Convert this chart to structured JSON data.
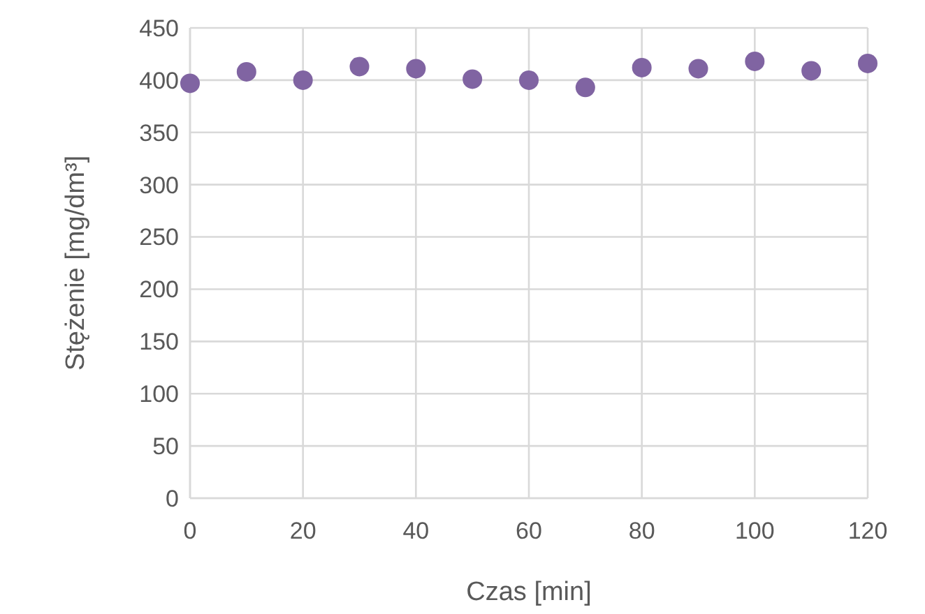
{
  "chart_data": {
    "type": "scatter",
    "xlabel": "Czas [min]",
    "ylabel": "Stężenie [mg/dm³]",
    "x": [
      0,
      10,
      20,
      30,
      40,
      50,
      60,
      70,
      80,
      90,
      100,
      110,
      120
    ],
    "series": [
      {
        "color": "#8064a2",
        "values": [
          397,
          408,
          400,
          413,
          411,
          401,
          400,
          393,
          412,
          411,
          418,
          409,
          416
        ]
      }
    ],
    "xlim": [
      0,
      120
    ],
    "xticks": [
      0,
      20,
      40,
      60,
      80,
      100,
      120
    ],
    "ylim": [
      0,
      450
    ],
    "yticks": [
      0,
      50,
      100,
      150,
      200,
      250,
      300,
      350,
      400,
      450
    ],
    "grid": true,
    "marker": "circle"
  }
}
